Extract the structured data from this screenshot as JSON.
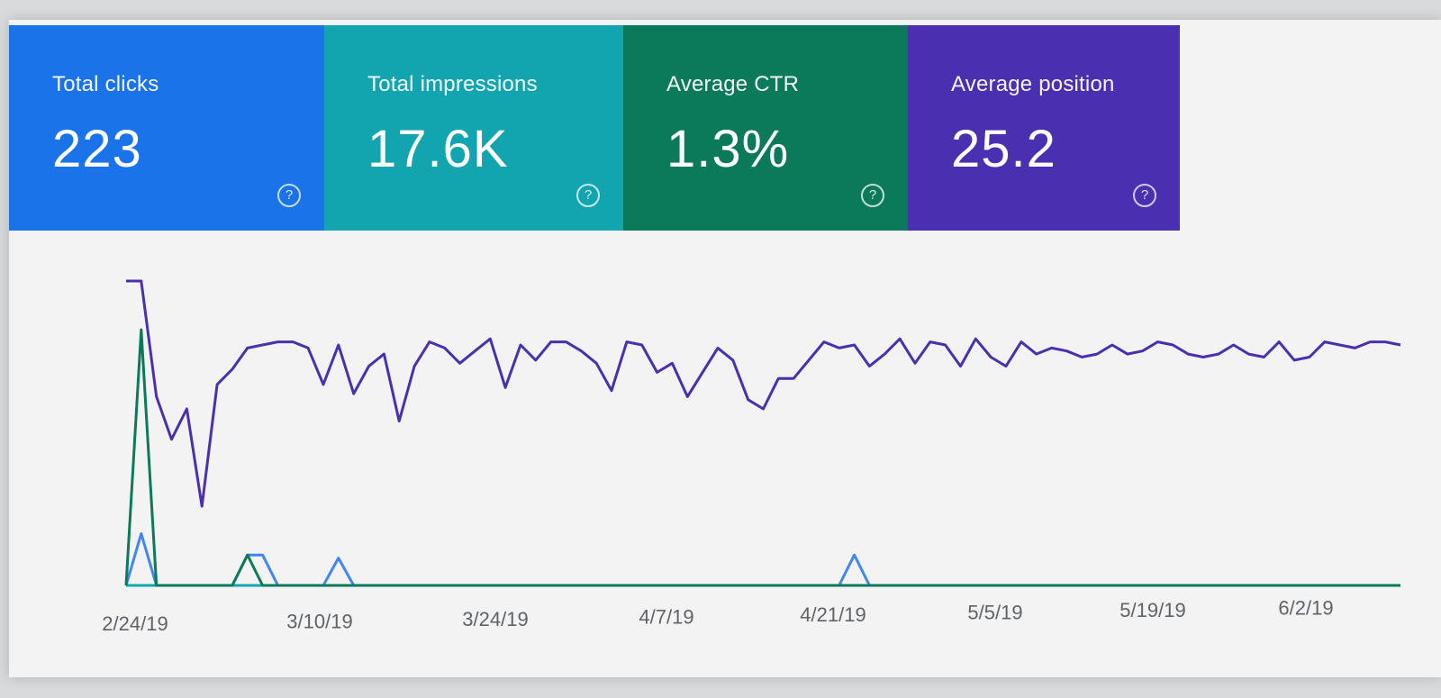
{
  "cards": [
    {
      "id": "clicks",
      "label": "Total clicks",
      "value": "223",
      "color": "#1a73e8"
    },
    {
      "id": "impressions",
      "label": "Total impressions",
      "value": "17.6K",
      "color": "#12a4af"
    },
    {
      "id": "ctr",
      "label": "Average CTR",
      "value": "1.3%",
      "color": "#0b7a5a"
    },
    {
      "id": "position",
      "label": "Average position",
      "value": "25.2",
      "color": "#4a2fb0"
    }
  ],
  "icons": {
    "help": "help-circle-icon",
    "help_glyph": "?"
  },
  "chart_data": {
    "type": "line",
    "x_ticks": [
      "2/24/19",
      "3/10/19",
      "3/24/19",
      "4/7/19",
      "4/21/19",
      "5/5/19",
      "5/19/19",
      "6/2/19"
    ],
    "series": [
      {
        "color": "#4a2fb0",
        "values": [
          100,
          100,
          62,
          48,
          58,
          26,
          66,
          71,
          78,
          79,
          80,
          80,
          78,
          66,
          79,
          63,
          72,
          76,
          54,
          72,
          80,
          78,
          73,
          77,
          81,
          65,
          79,
          74,
          80,
          80,
          77,
          73,
          64,
          80,
          79,
          70,
          73,
          62,
          70,
          78,
          74,
          61,
          58,
          68,
          68,
          74,
          80,
          78,
          79,
          72,
          76,
          81,
          73,
          80,
          79,
          72,
          81,
          75,
          72,
          80,
          76,
          78,
          77,
          75,
          76,
          79,
          76,
          77,
          80,
          79,
          76,
          75,
          76,
          79,
          76,
          75,
          80,
          74,
          75,
          80,
          79,
          78,
          80,
          80,
          79
        ]
      },
      {
        "color": "#4285f4",
        "values": [
          0,
          17,
          0,
          0,
          0,
          0,
          0,
          0,
          10,
          10,
          0,
          0,
          0,
          0,
          9,
          0,
          0,
          0,
          0,
          0,
          0,
          0,
          0,
          0,
          0,
          0,
          0,
          0,
          0,
          0,
          0,
          0,
          0,
          0,
          0,
          0,
          0,
          0,
          0,
          0,
          0,
          0,
          0,
          0,
          0,
          0,
          0,
          0,
          10,
          0,
          0,
          0,
          0,
          0,
          0,
          0,
          0,
          0,
          0,
          0,
          0,
          0,
          0,
          0,
          0,
          0,
          0,
          0,
          0,
          0,
          0,
          0,
          0,
          0,
          0,
          0,
          0,
          0,
          0,
          0,
          0,
          0,
          0,
          0,
          0
        ]
      },
      {
        "color": "#12a4af",
        "values": [
          0,
          0,
          0,
          0,
          0,
          0,
          0,
          0,
          0,
          0,
          0,
          0,
          0,
          0,
          0,
          0,
          0,
          0,
          0,
          0,
          0,
          0,
          0,
          0,
          0,
          0,
          0,
          0,
          0,
          0,
          0,
          0,
          0,
          0,
          0,
          0,
          0,
          0,
          0,
          0,
          0,
          0,
          0,
          0,
          0,
          0,
          0,
          0,
          0,
          0,
          0,
          0,
          0,
          0,
          0,
          0,
          0,
          0,
          0,
          0,
          0,
          0,
          0,
          0,
          0,
          0,
          0,
          0,
          0,
          0,
          0,
          0,
          0,
          0,
          0,
          0,
          0,
          0,
          0,
          0,
          0,
          0,
          0,
          0,
          0
        ]
      },
      {
        "color": "#0b7a5a",
        "values": [
          0,
          84,
          0,
          0,
          0,
          0,
          0,
          0,
          10,
          0,
          0,
          0,
          0,
          0,
          0,
          0,
          0,
          0,
          0,
          0,
          0,
          0,
          0,
          0,
          0,
          0,
          0,
          0,
          0,
          0,
          0,
          0,
          0,
          0,
          0,
          0,
          0,
          0,
          0,
          0,
          0,
          0,
          0,
          0,
          0,
          0,
          0,
          0,
          0,
          0,
          0,
          0,
          0,
          0,
          0,
          0,
          0,
          0,
          0,
          0,
          0,
          0,
          0,
          0,
          0,
          0,
          0,
          0,
          0,
          0,
          0,
          0,
          0,
          0,
          0,
          0,
          0,
          0,
          0,
          0,
          0,
          0,
          0,
          0,
          0
        ]
      }
    ]
  }
}
